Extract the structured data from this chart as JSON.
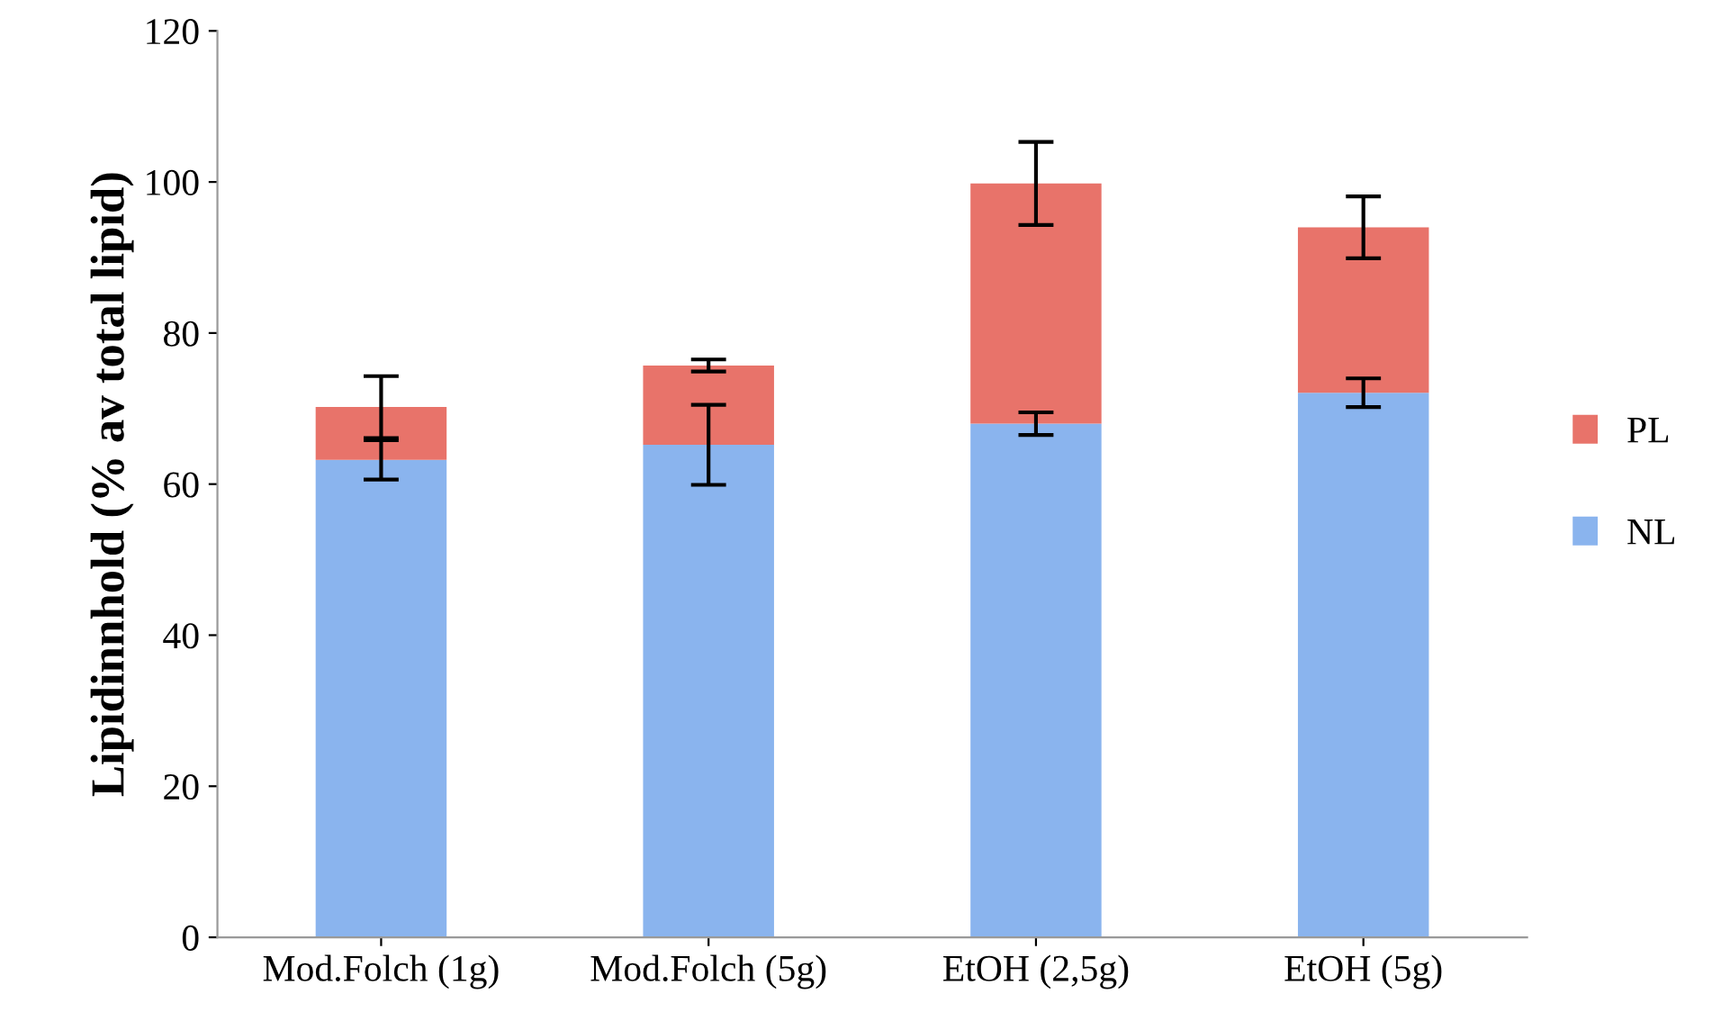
{
  "chart_data": {
    "type": "bar",
    "stacked": true,
    "ylabel": "Lipidinnhold (% av total lipid)",
    "categories": [
      "Mod.Folch (1g)",
      "Mod.Folch (5g)",
      "EtOH (2,5g)",
      "EtOH (5g)"
    ],
    "series": [
      {
        "name": "NL",
        "color": "#8ab4ee",
        "values": [
          63.2,
          65.2,
          68.0,
          72.1
        ],
        "errors": [
          2.6,
          5.3,
          1.5,
          1.9
        ]
      },
      {
        "name": "PL",
        "color": "#e8736a",
        "values": [
          7.0,
          10.5,
          31.8,
          21.9
        ],
        "errors": [
          4.1,
          0.8,
          5.5,
          4.1
        ]
      }
    ],
    "ylim": [
      0,
      120
    ],
    "yticks": [
      0,
      20,
      40,
      60,
      80,
      100,
      120
    ],
    "grid": false,
    "legend": "right"
  }
}
